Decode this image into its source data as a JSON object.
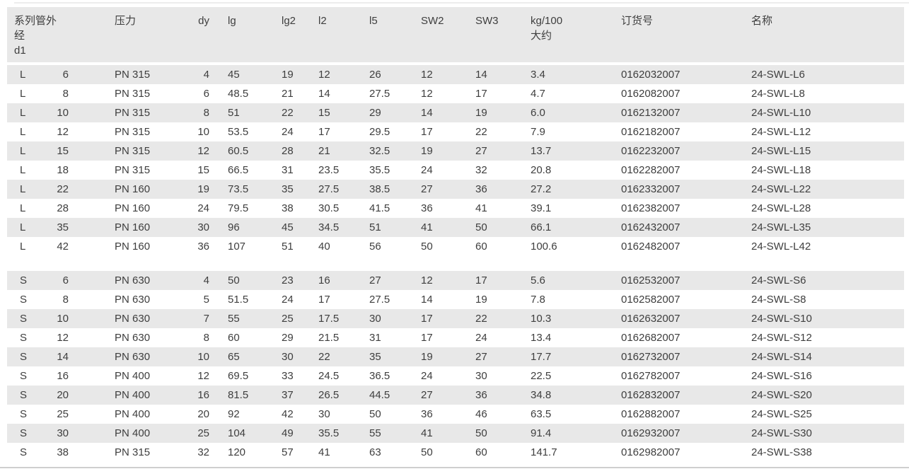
{
  "colors": {
    "stripe": "#e8e8e8",
    "text": "#3e3e3e",
    "bottom_rule": "#cfcfcf"
  },
  "table": {
    "header": {
      "col1_lines": [
        "系列管外",
        "经",
        "d1"
      ],
      "pressure": "压力",
      "dy": "dy",
      "lg": "lg",
      "lg2": "lg2",
      "l2": "l2",
      "l5": "l5",
      "sw2": "SW2",
      "sw3": "SW3",
      "kg_lines": [
        "kg/100",
        "大约"
      ],
      "order_no": "订货号",
      "name": "名称"
    },
    "columns": [
      "series",
      "d1",
      "pressure",
      "dy",
      "lg",
      "lg2",
      "l2",
      "l5",
      "sw2",
      "sw3",
      "kg100",
      "order_no",
      "name"
    ],
    "sections": [
      {
        "series": "L",
        "rows": [
          [
            "L",
            "6",
            "PN 315",
            "4",
            "45",
            "19",
            "12",
            "26",
            "12",
            "14",
            "3.4",
            "0162032007",
            "24-SWL-L6"
          ],
          [
            "L",
            "8",
            "PN 315",
            "6",
            "48.5",
            "21",
            "14",
            "27.5",
            "12",
            "17",
            "4.7",
            "0162082007",
            "24-SWL-L8"
          ],
          [
            "L",
            "10",
            "PN 315",
            "8",
            "51",
            "22",
            "15",
            "29",
            "14",
            "19",
            "6.0",
            "0162132007",
            "24-SWL-L10"
          ],
          [
            "L",
            "12",
            "PN 315",
            "10",
            "53.5",
            "24",
            "17",
            "29.5",
            "17",
            "22",
            "7.9",
            "0162182007",
            "24-SWL-L12"
          ],
          [
            "L",
            "15",
            "PN 315",
            "12",
            "60.5",
            "28",
            "21",
            "32.5",
            "19",
            "27",
            "13.7",
            "0162232007",
            "24-SWL-L15"
          ],
          [
            "L",
            "18",
            "PN 315",
            "15",
            "66.5",
            "31",
            "23.5",
            "35.5",
            "24",
            "32",
            "20.8",
            "0162282007",
            "24-SWL-L18"
          ],
          [
            "L",
            "22",
            "PN 160",
            "19",
            "73.5",
            "35",
            "27.5",
            "38.5",
            "27",
            "36",
            "27.2",
            "0162332007",
            "24-SWL-L22"
          ],
          [
            "L",
            "28",
            "PN 160",
            "24",
            "79.5",
            "38",
            "30.5",
            "41.5",
            "36",
            "41",
            "39.1",
            "0162382007",
            "24-SWL-L28"
          ],
          [
            "L",
            "35",
            "PN 160",
            "30",
            "96",
            "45",
            "34.5",
            "51",
            "41",
            "50",
            "66.1",
            "0162432007",
            "24-SWL-L35"
          ],
          [
            "L",
            "42",
            "PN 160",
            "36",
            "107",
            "51",
            "40",
            "56",
            "50",
            "60",
            "100.6",
            "0162482007",
            "24-SWL-L42"
          ]
        ]
      },
      {
        "series": "S",
        "rows": [
          [
            "S",
            "6",
            "PN 630",
            "4",
            "50",
            "23",
            "16",
            "27",
            "12",
            "17",
            "5.6",
            "0162532007",
            "24-SWL-S6"
          ],
          [
            "S",
            "8",
            "PN 630",
            "5",
            "51.5",
            "24",
            "17",
            "27.5",
            "14",
            "19",
            "7.8",
            "0162582007",
            "24-SWL-S8"
          ],
          [
            "S",
            "10",
            "PN 630",
            "7",
            "55",
            "25",
            "17.5",
            "30",
            "17",
            "22",
            "10.3",
            "0162632007",
            "24-SWL-S10"
          ],
          [
            "S",
            "12",
            "PN 630",
            "8",
            "60",
            "29",
            "21.5",
            "31",
            "17",
            "24",
            "13.4",
            "0162682007",
            "24-SWL-S12"
          ],
          [
            "S",
            "14",
            "PN 630",
            "10",
            "65",
            "30",
            "22",
            "35",
            "19",
            "27",
            "17.7",
            "0162732007",
            "24-SWL-S14"
          ],
          [
            "S",
            "16",
            "PN 400",
            "12",
            "69.5",
            "33",
            "24.5",
            "36.5",
            "24",
            "30",
            "22.5",
            "0162782007",
            "24-SWL-S16"
          ],
          [
            "S",
            "20",
            "PN 400",
            "16",
            "81.5",
            "37",
            "26.5",
            "44.5",
            "27",
            "36",
            "34.8",
            "0162832007",
            "24-SWL-S20"
          ],
          [
            "S",
            "25",
            "PN 400",
            "20",
            "92",
            "42",
            "30",
            "50",
            "36",
            "46",
            "63.5",
            "0162882007",
            "24-SWL-S25"
          ],
          [
            "S",
            "30",
            "PN 400",
            "25",
            "104",
            "49",
            "35.5",
            "55",
            "41",
            "50",
            "91.4",
            "0162932007",
            "24-SWL-S30"
          ],
          [
            "S",
            "38",
            "PN 315",
            "32",
            "120",
            "57",
            "41",
            "63",
            "50",
            "60",
            "141.7",
            "0162982007",
            "24-SWL-S38"
          ]
        ]
      }
    ]
  }
}
